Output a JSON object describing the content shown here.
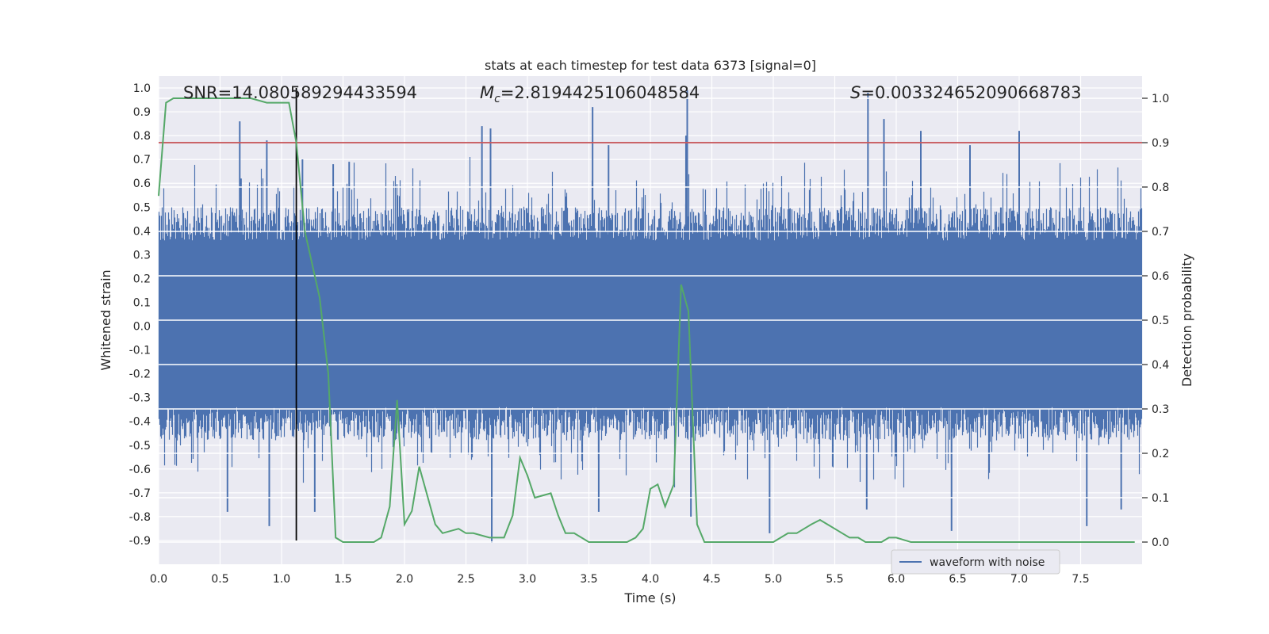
{
  "chart_data": {
    "type": "line",
    "title": "stats at each timestep for test data 6373 [signal=0]",
    "xlabel": "Time (s)",
    "ylabel": "Whitened strain",
    "ylabel_right": "Detection probability",
    "xlim": [
      0.0,
      8.0
    ],
    "ylim": [
      -1.0,
      1.05
    ],
    "ylim_right": [
      -0.05,
      1.05
    ],
    "xticks": [
      "0.0",
      "0.5",
      "1.0",
      "1.5",
      "2.0",
      "2.5",
      "3.0",
      "3.5",
      "4.0",
      "4.5",
      "5.0",
      "5.5",
      "6.0",
      "6.5",
      "7.0",
      "7.5"
    ],
    "yticks": [
      "1.0",
      "0.9",
      "0.8",
      "0.7",
      "0.6",
      "0.5",
      "0.4",
      "0.3",
      "0.2",
      "0.1",
      "0.0",
      "-0.1",
      "-0.2",
      "-0.3",
      "-0.4",
      "-0.5",
      "-0.6",
      "-0.7",
      "-0.8",
      "-0.9"
    ],
    "yticks_right": [
      "1.0",
      "0.9",
      "0.8",
      "0.7",
      "0.6",
      "0.5",
      "0.4",
      "0.3",
      "0.2",
      "0.1",
      "0.0"
    ],
    "grid": true,
    "legend": {
      "placement": "lower-right",
      "entries": [
        "waveform with noise"
      ]
    },
    "annotations": {
      "snr": "SNR=14.080589294433594",
      "mc_symbol": "M",
      "mc_sub": "c",
      "mc_value": "=2.8194425106048584",
      "s_symbol": "S",
      "s_value": "=0.003324652090668783"
    },
    "threshold_right": 0.9,
    "vline_x": 1.12,
    "series": [
      {
        "name": "waveform with noise",
        "axis": "left",
        "color": "#4c72b0",
        "envelope": "dense noise, mostly within ±0.45, with spikes up to ~1.0 and down to ~-0.9"
      },
      {
        "axis": "right",
        "color": "#55a868",
        "x": [
          0.0,
          0.06,
          0.12,
          0.25,
          0.5,
          0.75,
          0.88,
          1.0,
          1.06,
          1.12,
          1.19,
          1.31,
          1.38,
          1.44,
          1.5,
          1.62,
          1.75,
          1.81,
          1.88,
          1.94,
          2.0,
          2.06,
          2.12,
          2.19,
          2.25,
          2.31,
          2.44,
          2.5,
          2.56,
          2.69,
          2.75,
          2.81,
          2.88,
          2.94,
          3.0,
          3.06,
          3.19,
          3.25,
          3.31,
          3.38,
          3.5,
          3.62,
          3.75,
          3.81,
          3.88,
          3.94,
          4.0,
          4.06,
          4.12,
          4.19,
          4.25,
          4.31,
          4.38,
          4.44,
          4.5,
          4.62,
          4.75,
          5.0,
          5.06,
          5.12,
          5.19,
          5.25,
          5.31,
          5.38,
          5.44,
          5.5,
          5.56,
          5.62,
          5.69,
          5.75,
          5.81,
          5.88,
          5.94,
          6.0,
          6.12,
          6.25,
          6.38,
          6.5,
          6.62,
          6.75,
          7.0,
          7.25,
          7.5,
          7.75,
          7.94
        ],
        "y": [
          0.78,
          0.99,
          1.0,
          1.0,
          1.0,
          1.0,
          0.99,
          0.99,
          0.99,
          0.9,
          0.7,
          0.55,
          0.38,
          0.01,
          0.0,
          0.0,
          0.0,
          0.01,
          0.08,
          0.32,
          0.04,
          0.07,
          0.17,
          0.1,
          0.04,
          0.02,
          0.03,
          0.02,
          0.02,
          0.01,
          0.01,
          0.01,
          0.06,
          0.19,
          0.15,
          0.1,
          0.11,
          0.06,
          0.02,
          0.02,
          0.0,
          0.0,
          0.0,
          0.0,
          0.01,
          0.03,
          0.12,
          0.13,
          0.08,
          0.13,
          0.58,
          0.52,
          0.04,
          0.0,
          0.0,
          0.0,
          0.0,
          0.0,
          0.01,
          0.02,
          0.02,
          0.03,
          0.04,
          0.05,
          0.04,
          0.03,
          0.02,
          0.01,
          0.01,
          0.0,
          0.0,
          0.0,
          0.01,
          0.01,
          0.0,
          0.0,
          0.0,
          0.0,
          0.0,
          0.0,
          0.0,
          0.0,
          0.0,
          0.0,
          0.0
        ]
      }
    ],
    "spikes": [
      {
        "x": 0.66,
        "y": 0.86
      },
      {
        "x": 0.67,
        "y": 0.62
      },
      {
        "x": 0.88,
        "y": 0.78
      },
      {
        "x": 1.17,
        "y": 0.7
      },
      {
        "x": 1.42,
        "y": 0.68
      },
      {
        "x": 1.55,
        "y": 0.69
      },
      {
        "x": 2.63,
        "y": 0.84
      },
      {
        "x": 2.7,
        "y": 0.83
      },
      {
        "x": 3.53,
        "y": 0.92
      },
      {
        "x": 3.66,
        "y": 0.76
      },
      {
        "x": 4.3,
        "y": 0.99
      },
      {
        "x": 4.29,
        "y": 0.8
      },
      {
        "x": 5.77,
        "y": 0.98
      },
      {
        "x": 5.9,
        "y": 0.87
      },
      {
        "x": 6.2,
        "y": 0.82
      },
      {
        "x": 6.6,
        "y": 0.76
      },
      {
        "x": 7.0,
        "y": 0.82
      },
      {
        "x": 0.56,
        "y": -0.78
      },
      {
        "x": 0.9,
        "y": -0.84
      },
      {
        "x": 1.27,
        "y": -0.78
      },
      {
        "x": 2.71,
        "y": -0.91
      },
      {
        "x": 3.58,
        "y": -0.78
      },
      {
        "x": 4.33,
        "y": -0.8
      },
      {
        "x": 4.97,
        "y": -0.87
      },
      {
        "x": 5.76,
        "y": -0.77
      },
      {
        "x": 6.45,
        "y": -0.86
      },
      {
        "x": 7.55,
        "y": -0.84
      },
      {
        "x": 7.83,
        "y": -0.77
      }
    ]
  }
}
